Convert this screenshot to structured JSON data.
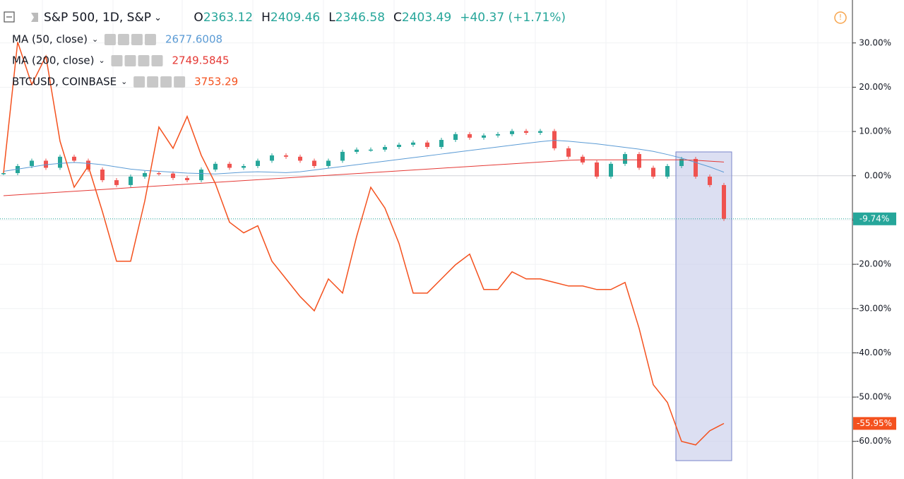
{
  "chart_data": {
    "type": "candlestick-compare",
    "header": {
      "symbol": "S&P 500, 1D, S&P",
      "ohlc": [
        {
          "label": "O",
          "value": "2363.12"
        },
        {
          "label": "H",
          "value": "2409.46"
        },
        {
          "label": "L",
          "value": "2346.58"
        },
        {
          "label": "C",
          "value": "2403.49"
        }
      ],
      "change": "+40.37 (+1.71%)"
    },
    "categories": [
      null,
      null,
      null,
      null,
      null,
      null,
      null,
      null,
      null,
      null,
      null,
      null,
      null,
      null,
      null,
      null,
      null,
      null,
      null,
      null,
      null,
      null,
      null,
      null,
      null,
      null,
      null,
      null,
      null,
      null,
      null,
      null,
      null,
      null,
      null,
      null,
      null,
      null,
      null,
      null,
      null,
      null,
      null,
      null,
      null,
      null,
      null,
      null,
      null,
      null,
      null,
      null,
      null,
      null,
      null,
      null,
      null,
      null,
      null,
      null
    ],
    "series": [
      {
        "name": "S&P 500, 1D, S&P",
        "kind": "candles",
        "color": "#26a69a",
        "down_color": "#ef5350",
        "values": [
          0.6,
          2.2,
          3.4,
          1.8,
          4.3,
          3.4,
          1.4,
          -1.0,
          -2.1,
          -0.2,
          0.6,
          0.5,
          -0.5,
          -1.0,
          1.4,
          2.7,
          1.8,
          2.2,
          3.4,
          4.6,
          4.3,
          3.4,
          2.2,
          3.4,
          5.4,
          5.9,
          5.9,
          6.5,
          7.0,
          7.5,
          6.5,
          8.1,
          9.4,
          8.6,
          9.1,
          9.4,
          10.1,
          9.7,
          10.1,
          6.2,
          4.3,
          3.0,
          -0.2,
          2.7,
          4.9,
          1.8,
          -0.2,
          2.2,
          3.8,
          -0.2,
          -2.1,
          -9.74,
          null,
          null,
          null,
          null,
          null,
          null,
          null,
          null
        ],
        "value_labels": [
          null,
          null,
          null,
          null,
          null,
          null,
          null,
          null,
          null,
          null,
          null,
          null,
          null,
          null,
          null,
          null,
          null,
          null,
          null,
          null,
          null,
          null,
          null,
          null,
          null,
          null,
          null,
          null,
          null,
          null,
          null,
          null,
          null,
          null,
          null,
          null,
          null,
          null,
          null,
          null,
          null,
          null,
          null,
          null,
          null,
          null,
          null,
          null,
          null,
          null,
          null,
          "-9.74%",
          null,
          null,
          null,
          null,
          null,
          null,
          null,
          null
        ]
      },
      {
        "name": "MA (50, close)",
        "kind": "line",
        "color": "#5b9bd5",
        "legend_value": "2677.6008",
        "values": [
          1.0,
          1.5,
          2.0,
          2.5,
          2.8,
          3.0,
          2.8,
          2.5,
          2.0,
          1.5,
          1.2,
          1.0,
          0.8,
          0.6,
          0.5,
          0.4,
          0.6,
          0.8,
          0.9,
          0.8,
          0.7,
          0.9,
          1.3,
          1.7,
          2.1,
          2.5,
          2.9,
          3.3,
          3.7,
          4.1,
          4.5,
          4.9,
          5.3,
          5.7,
          6.1,
          6.5,
          6.9,
          7.3,
          7.7,
          8.0,
          7.8,
          7.5,
          7.2,
          6.8,
          6.4,
          6.0,
          5.5,
          4.8,
          4.0,
          3.0,
          2.0,
          0.8,
          null,
          null,
          null,
          null,
          null,
          null,
          null,
          null
        ]
      },
      {
        "name": "MA (200, close)",
        "kind": "line",
        "color": "#e53935",
        "legend_value": "2749.5845",
        "values": [
          -4.5,
          -4.3,
          -4.1,
          -3.9,
          -3.7,
          -3.5,
          -3.3,
          -3.1,
          -2.9,
          -2.7,
          -2.5,
          -2.3,
          -2.1,
          -1.9,
          -1.7,
          -1.5,
          -1.3,
          -1.1,
          -0.9,
          -0.7,
          -0.5,
          -0.3,
          -0.1,
          0.1,
          0.3,
          0.5,
          0.7,
          0.9,
          1.1,
          1.3,
          1.5,
          1.7,
          1.9,
          2.1,
          2.3,
          2.5,
          2.7,
          2.9,
          3.1,
          3.3,
          3.5,
          3.6,
          3.6,
          3.6,
          3.6,
          3.6,
          3.6,
          3.6,
          3.6,
          3.5,
          3.3,
          3.1,
          null,
          null,
          null,
          null,
          null,
          null,
          null,
          null
        ]
      },
      {
        "name": "BTCUSD, COINBASE",
        "kind": "line",
        "color": "#f4511e",
        "legend_value": "3753.29",
        "values": [
          0.6,
          30.2,
          20.6,
          27.0,
          7.8,
          -2.6,
          2.2,
          -8.1,
          -19.3,
          -19.3,
          -5.7,
          11.0,
          6.2,
          13.4,
          4.6,
          -1.8,
          -10.5,
          -12.9,
          -11.3,
          -19.3,
          -23.3,
          -27.3,
          -30.5,
          -23.3,
          -26.5,
          -13.7,
          -2.6,
          -7.3,
          -15.3,
          -26.5,
          -26.5,
          -23.3,
          -20.1,
          -17.7,
          -25.7,
          -25.7,
          -21.7,
          -23.3,
          -23.3,
          -24.1,
          -24.9,
          -24.9,
          -25.7,
          -25.7,
          -24.1,
          -34.5,
          -47.2,
          -51.2,
          -60.0,
          -60.8,
          -57.6,
          -55.95,
          null,
          null,
          null,
          null,
          null,
          null,
          null,
          null
        ],
        "value_labels": [
          null,
          null,
          null,
          null,
          null,
          null,
          null,
          null,
          null,
          null,
          null,
          null,
          null,
          null,
          null,
          null,
          null,
          null,
          null,
          null,
          null,
          null,
          null,
          null,
          null,
          null,
          null,
          null,
          null,
          null,
          null,
          null,
          null,
          null,
          null,
          null,
          null,
          null,
          null,
          null,
          null,
          null,
          null,
          null,
          null,
          null,
          null,
          null,
          null,
          null,
          null,
          "-55.95%",
          null,
          null,
          null,
          null,
          null,
          null,
          null,
          null
        ]
      }
    ],
    "ylim": [
      -68.5,
      39.7
    ],
    "yticks": [
      {
        "value": 30,
        "label": "30.00%"
      },
      {
        "value": 20,
        "label": "20.00%"
      },
      {
        "value": 10,
        "label": "10.00%"
      },
      {
        "value": 0,
        "label": "0.00%"
      },
      {
        "value": -10,
        "label": "-10.00%"
      },
      {
        "value": -20,
        "label": "-20.00%"
      },
      {
        "value": -30,
        "label": "-30.00%"
      },
      {
        "value": -40,
        "label": "-40.00%"
      },
      {
        "value": -50,
        "label": "-50.00%"
      },
      {
        "value": -60,
        "label": "-60.00%"
      }
    ],
    "grid": true
  }
}
